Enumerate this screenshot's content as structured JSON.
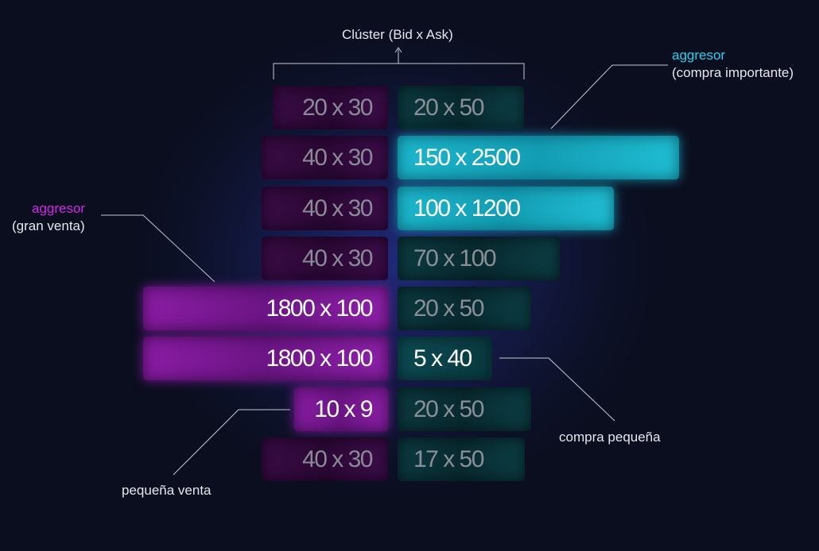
{
  "title": "Clúster (Bid x Ask)",
  "rows": [
    {
      "bid": "20 x 30",
      "ask": "20 x 50"
    },
    {
      "bid": "40 x 30",
      "ask": "150 x 2500"
    },
    {
      "bid": "40 x 30",
      "ask": "100 x 1200"
    },
    {
      "bid": "40 x 30",
      "ask": "70 x 100"
    },
    {
      "bid": "1800 x 100",
      "ask": "20 x 50"
    },
    {
      "bid": "1800 x 100",
      "ask": "5 x 40"
    },
    {
      "bid": "10 x 9",
      "ask": "20 x 50"
    },
    {
      "bid": "40 x 30",
      "ask": "17 x 50"
    }
  ],
  "annotations": {
    "big_buy": {
      "label": "aggresor",
      "note": "(compra importante)"
    },
    "big_sell": {
      "label": "aggresor",
      "note": "(gran venta)"
    },
    "small_buy": {
      "label": "compra pequeña"
    },
    "small_sell": {
      "label": "pequeña venta"
    }
  }
}
